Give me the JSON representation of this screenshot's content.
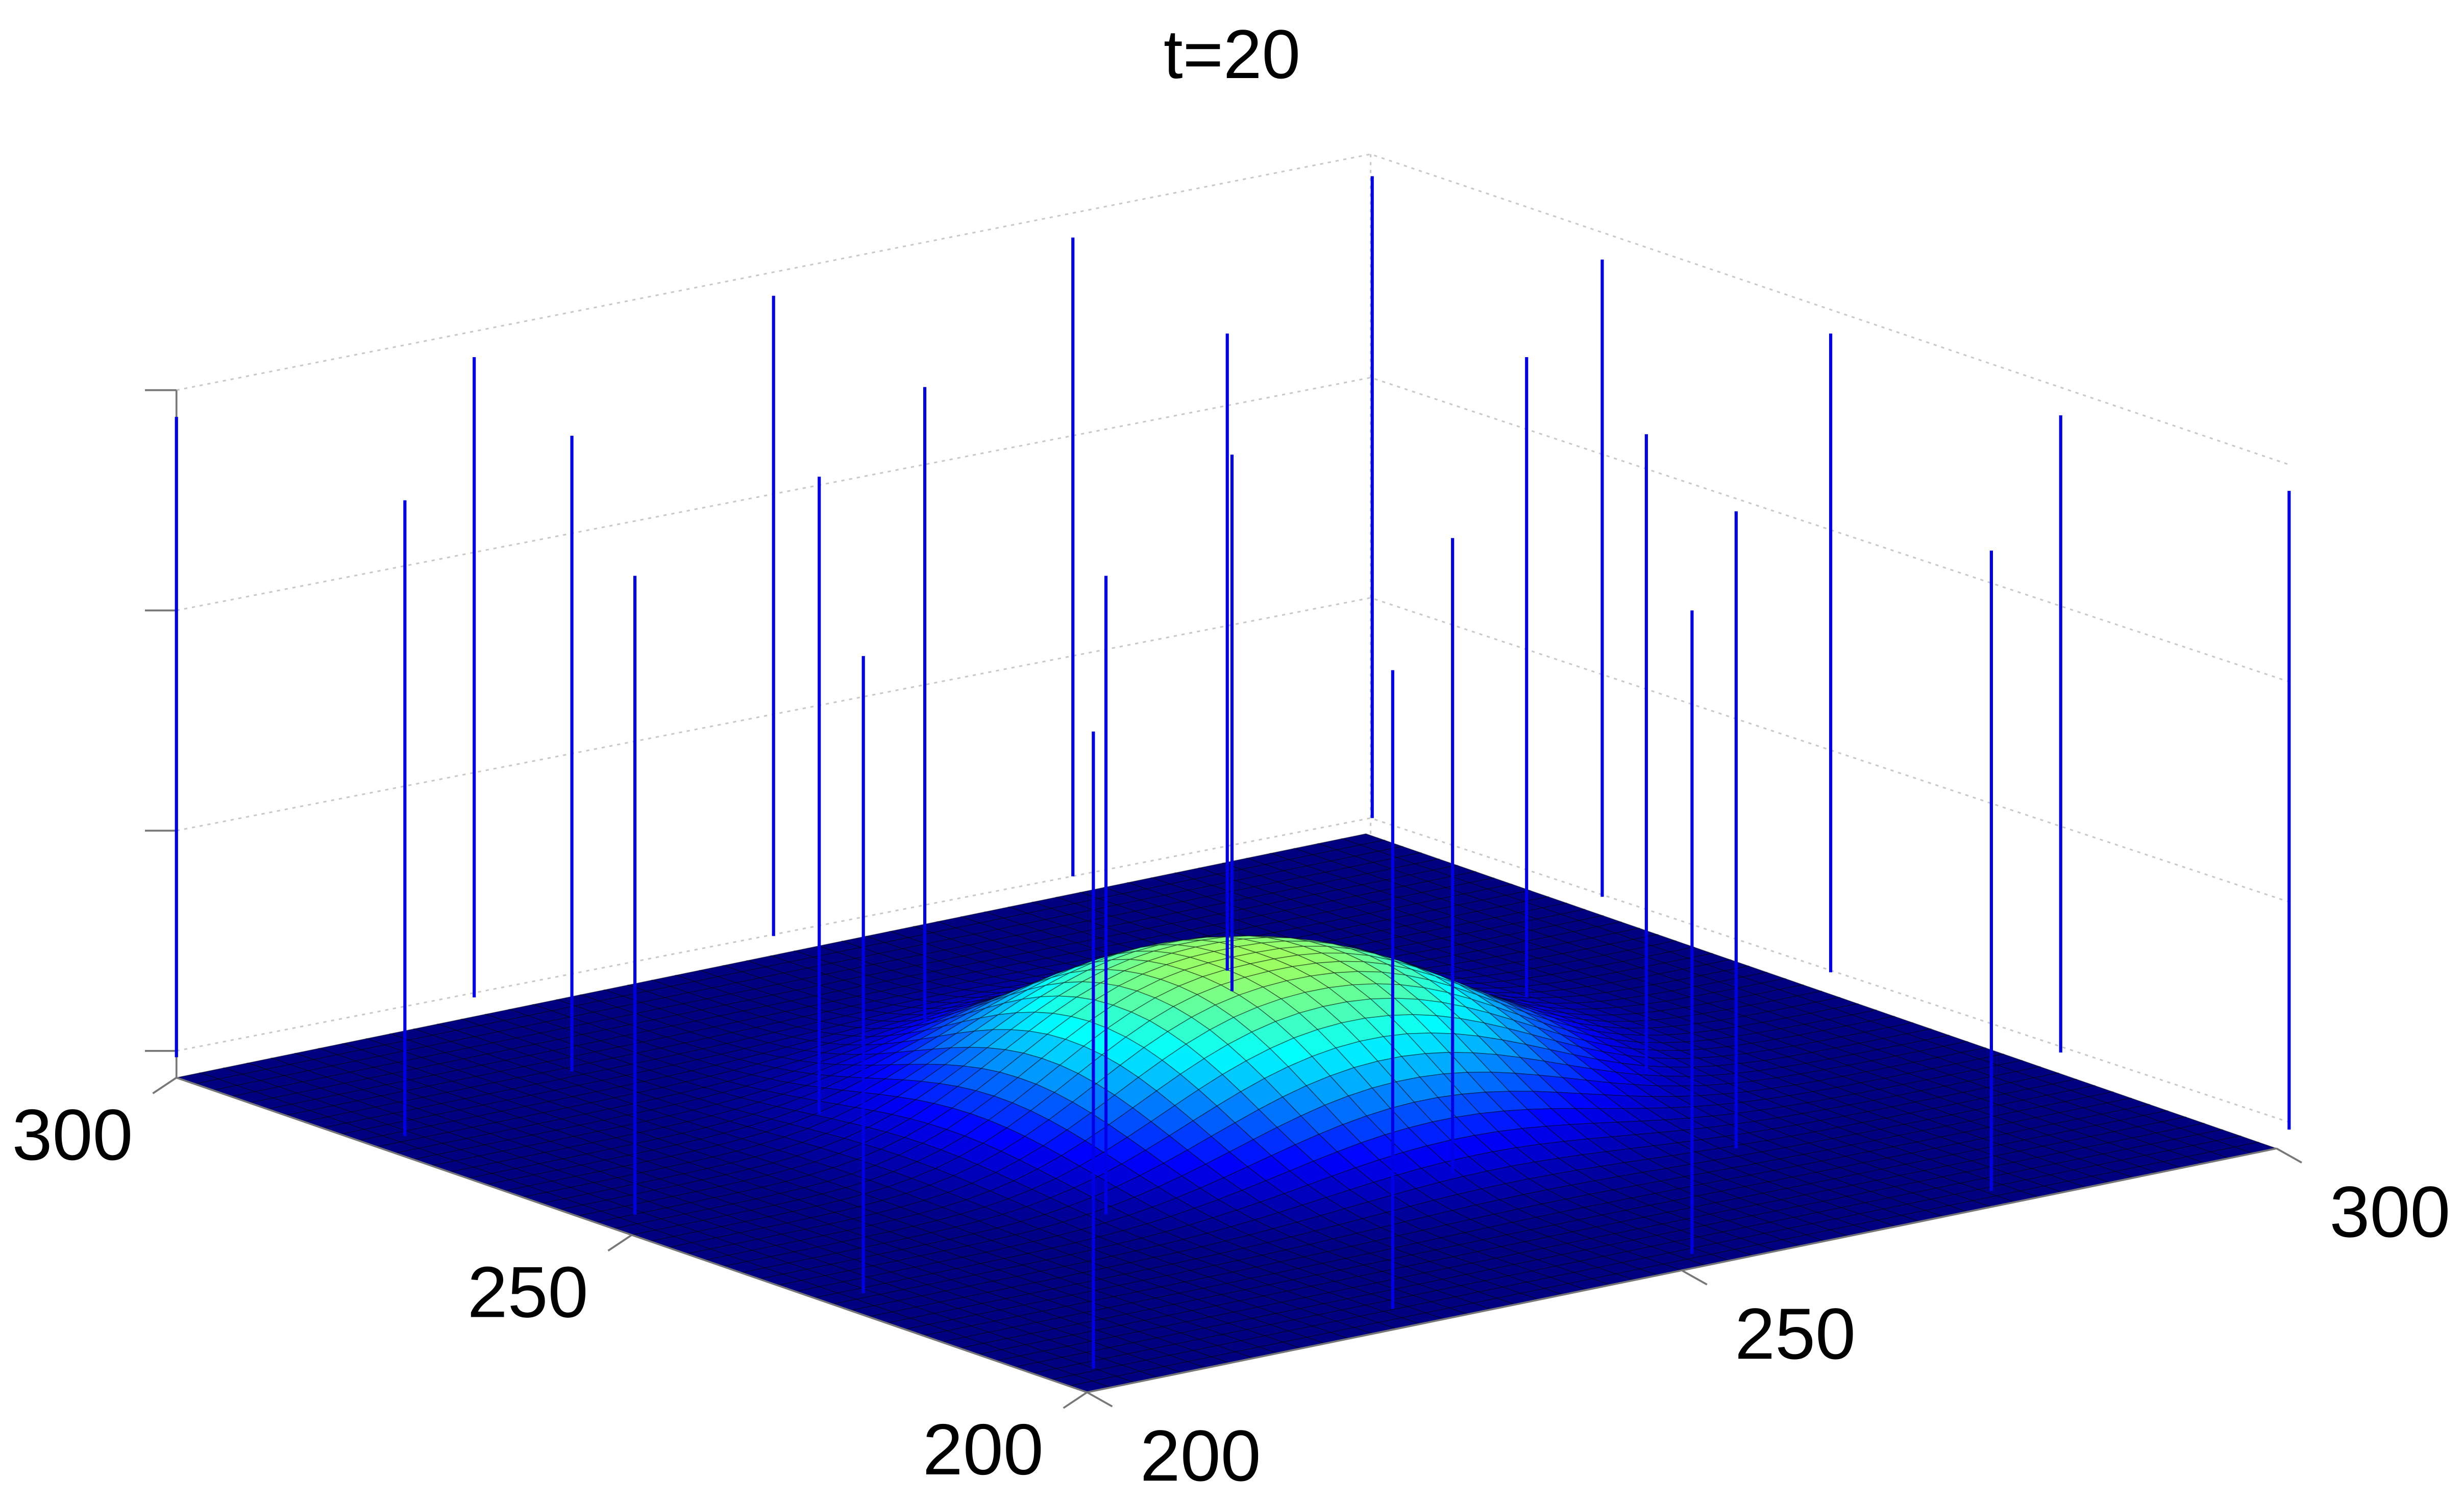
{
  "chart_data": {
    "type": "surface",
    "title": "t=20",
    "xlim": [
      200,
      300
    ],
    "xticks": [
      200,
      250,
      300
    ],
    "ylim": [
      200,
      300
    ],
    "yticks": [
      200,
      250,
      300
    ]
  }
}
